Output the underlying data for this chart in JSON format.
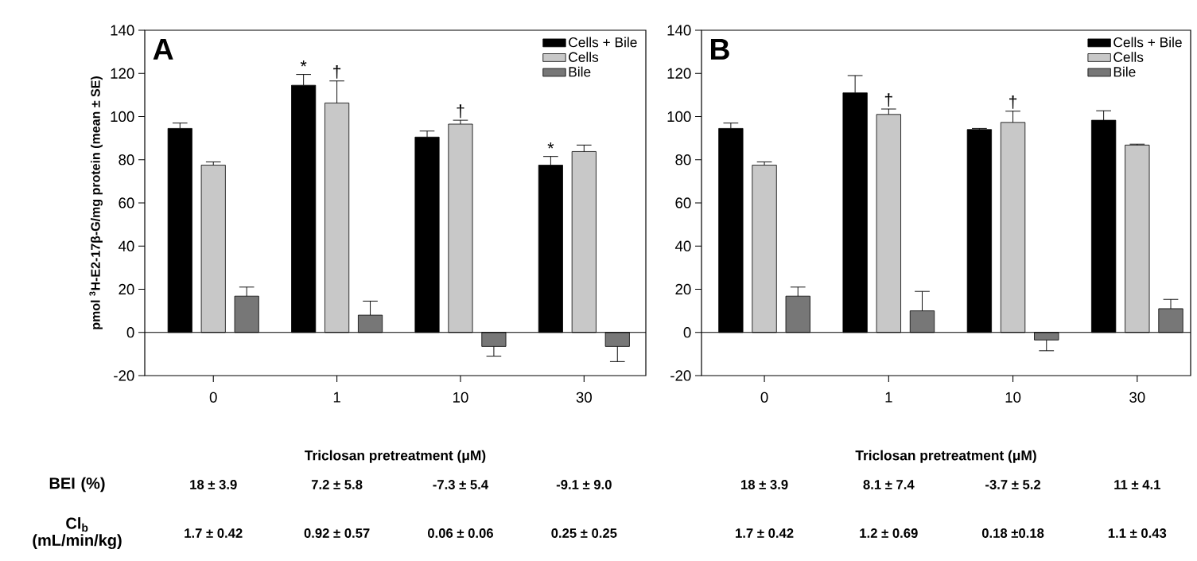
{
  "chart_data": [
    {
      "type": "bar",
      "title": "A",
      "xlabel": "Triclosan pretreatment (μM)",
      "ylabel": "pmol $^{3}$H-E2-17β-G/mg protein (mean ± SE)",
      "categories": [
        "0",
        "1",
        "10",
        "30"
      ],
      "ylim": [
        -20,
        140
      ],
      "yticks": [
        -20,
        0,
        20,
        40,
        60,
        80,
        100,
        120,
        140
      ],
      "legend": "top right",
      "series": [
        {
          "name": "Cells + Bile",
          "color": "#000000",
          "values": [
            94.5,
            114.5,
            90.5,
            77.5
          ],
          "errors": [
            [
              94.5,
              97
            ],
            [
              114.5,
              119.5
            ],
            [
              90.5,
              93.3
            ],
            [
              77.5,
              81.5
            ]
          ]
        },
        {
          "name": "Cells",
          "color": "#c8c8c8",
          "values": [
            77.5,
            106.3,
            96.5,
            83.8
          ],
          "errors": [
            [
              77.5,
              79
            ],
            [
              106.3,
              116.5
            ],
            [
              96.5,
              98.3
            ],
            [
              83.8,
              86.8
            ]
          ]
        },
        {
          "name": "Bile",
          "color": "#777777",
          "values": [
            16.8,
            8,
            -6.5,
            -6.5
          ],
          "errors": [
            [
              16.8,
              21
            ],
            [
              8,
              14.5
            ],
            [
              -11,
              -6.5
            ],
            [
              -13.5,
              -6.5
            ]
          ]
        }
      ],
      "annotations": [
        "*",
        "†",
        "†",
        "*",
        "BEI (%)",
        "18 ± 3.9",
        "7.2 ± 5.8",
        "-7.3 ± 5.4",
        "-9.1 ± 9.0",
        "Cl$_{b}$ (mL/min/kg)",
        "1.7 ± 0.42",
        "0.92 ± 0.57",
        "0.06 ± 0.06",
        "0.25 ± 0.25"
      ]
    },
    {
      "type": "bar",
      "title": "B",
      "xlabel": "Triclosan pretreatment (μM)",
      "categories": [
        "0",
        "1",
        "10",
        "30"
      ],
      "ylim": [
        -20,
        140
      ],
      "yticks": [
        -20,
        0,
        20,
        40,
        60,
        80,
        100,
        120,
        140
      ],
      "legend": "top right",
      "series": [
        {
          "name": "Cells + Bile",
          "color": "#000000",
          "values": [
            94.5,
            111,
            94,
            98.3
          ],
          "errors": [
            [
              94.5,
              97
            ],
            [
              111,
              119
            ],
            [
              94,
              94.5
            ],
            [
              98.3,
              102.7
            ]
          ]
        },
        {
          "name": "Cells",
          "color": "#c8c8c8",
          "values": [
            77.5,
            101,
            97.3,
            86.8
          ],
          "errors": [
            [
              77.5,
              79
            ],
            [
              101,
              103.5
            ],
            [
              97.3,
              102.5
            ],
            [
              86.8,
              87.2
            ]
          ]
        },
        {
          "name": "Bile",
          "color": "#777777",
          "values": [
            16.8,
            10,
            -3.5,
            11
          ],
          "errors": [
            [
              16.8,
              21
            ],
            [
              10,
              19
            ],
            [
              -8.5,
              -3.5
            ],
            [
              11,
              15.3
            ]
          ]
        }
      ],
      "annotations": [
        "†",
        "†",
        "18 ± 3.9",
        "8.1 ± 7.4",
        "-3.7 ± 5.2",
        "11 ± 4.1",
        "1.7 ± 0.42",
        "1.2 ± 0.69",
        "0.18 ±0.18",
        "1.1 ± 0.43"
      ]
    }
  ]
}
